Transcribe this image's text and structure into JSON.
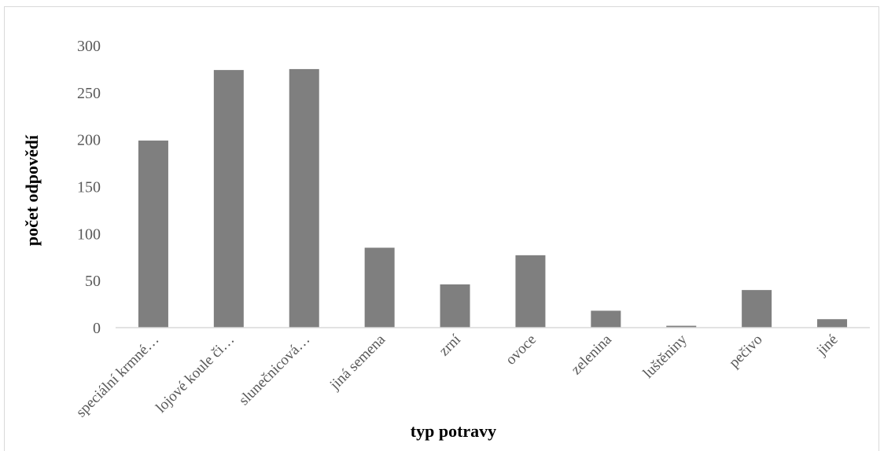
{
  "chart_data": {
    "type": "bar",
    "title": "",
    "xlabel": "typ potravy",
    "ylabel": "počet odpovědí",
    "ylim": [
      0,
      300
    ],
    "yticks": [
      0,
      50,
      100,
      150,
      200,
      250,
      300
    ],
    "grid": false,
    "categories": [
      "speciální krmné…",
      "lojové koule či…",
      "slunečnicová…",
      "jiná semena",
      "zrní",
      "ovoce",
      "zelenina",
      "luštěniny",
      "pečivo",
      "jiné"
    ],
    "values": [
      199,
      274,
      275,
      85,
      46,
      77,
      18,
      2,
      40,
      9
    ],
    "colors": {
      "bar": "#7f7f7f",
      "axis": "#d9d9d9",
      "text": "#595959",
      "label": "#000000"
    }
  }
}
